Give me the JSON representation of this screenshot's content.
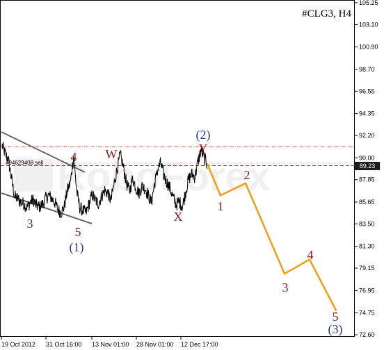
{
  "chart_data": {
    "type": "line",
    "symbol": "#CLG3, H4",
    "order_label": "#94629408 sell",
    "current_price": "89.23",
    "y_ticks": [
      "105.25",
      "103.10",
      "100.90",
      "98.70",
      "96.55",
      "94.35",
      "92.20",
      "90.00",
      "87.85",
      "85.65",
      "83.50",
      "81.30",
      "79.15",
      "76.95",
      "74.75",
      "72.60"
    ],
    "x_ticks": [
      "19 Oct 2012",
      "31 Oct 16:00",
      "13 Nov 01:00",
      "28 Nov 01:00",
      "12 Dec 17:00"
    ],
    "y_range": [
      72.6,
      105.25
    ],
    "price_series_samples": [
      91.2,
      90.4,
      89.8,
      88.0,
      86.2,
      86.0,
      85.6,
      85.5,
      85.1,
      85.6,
      85.9,
      85.3,
      85.2,
      85.4,
      86.0,
      86.3,
      86.0,
      85.6,
      84.9,
      84.6,
      85.2,
      86.8,
      87.6,
      90.2,
      86.7,
      85.1,
      84.8,
      84.6,
      85.5,
      86.4,
      85.8,
      85.5,
      86.2,
      86.8,
      86.5,
      85.8,
      87.4,
      88.9,
      90.3,
      89.1,
      87.5,
      86.7,
      88.0,
      87.1,
      86.5,
      87.2,
      87.0,
      86.3,
      85.6,
      87.4,
      88.8,
      89.5,
      88.3,
      87.6,
      87.0,
      86.1,
      85.4,
      85.7,
      85.2,
      86.6,
      87.9,
      88.4,
      88.1,
      89.6,
      90.8,
      90.0,
      89.3
    ],
    "resistance_level": 91.1,
    "order_level": 89.23,
    "forecast_path": [
      {
        "label": "",
        "value": 89.4
      },
      {
        "label": "1",
        "value": 86.3
      },
      {
        "label": "2",
        "value": 87.5
      },
      {
        "label": "3",
        "value": 78.6
      },
      {
        "label": "4",
        "value": 80.0
      },
      {
        "label": "5",
        "value": 75.0
      }
    ],
    "wave_labels": [
      {
        "text": "4",
        "color": "#8b1a1a"
      },
      {
        "text": "3",
        "color": "#8b1a1a"
      },
      {
        "text": "5",
        "color": "#8b1a1a"
      },
      {
        "text": "(1)",
        "color": "#2e3a87"
      },
      {
        "text": "W",
        "color": "#8b1a1a"
      },
      {
        "text": "X",
        "color": "#8b1a1a"
      },
      {
        "text": "(2)",
        "color": "#2e3a87"
      },
      {
        "text": "Y",
        "color": "#8b1a1a"
      },
      {
        "text": "1",
        "color": "#8b1a1a"
      },
      {
        "text": "2",
        "color": "#8b1a1a"
      },
      {
        "text": "3",
        "color": "#8b1a1a"
      },
      {
        "text": "4",
        "color": "#8b1a1a"
      },
      {
        "text": "5",
        "color": "#8b1a1a"
      },
      {
        "text": "(3)",
        "color": "#2e3a87"
      }
    ],
    "watermark": "RoboForex",
    "colors": {
      "price": "#000000",
      "forecast": "#f39c12",
      "resistance": "#e74c3c",
      "order_line": "#2e7d32",
      "channel": "#666666",
      "current_tag_bg": "#1a1a1a",
      "current_tag_text": "#ffffff"
    }
  }
}
